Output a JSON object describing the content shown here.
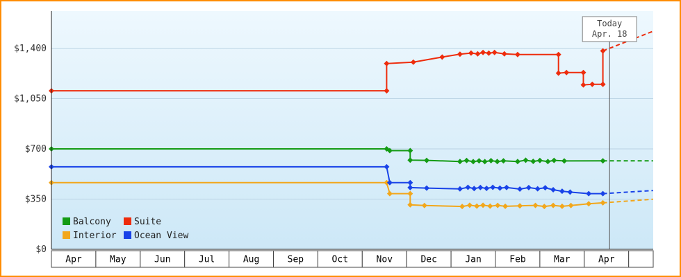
{
  "frame": {
    "border_color": "#ff8c00"
  },
  "chart_data": {
    "type": "line",
    "ylim": [
      0,
      1400
    ],
    "y_ticks": [
      {
        "value": 0,
        "label": "$0"
      },
      {
        "value": 350,
        "label": "$350"
      },
      {
        "value": 700,
        "label": "$700"
      },
      {
        "value": 1050,
        "label": "$1,050"
      },
      {
        "value": 1400,
        "label": "$1,400"
      }
    ],
    "x_months": [
      "Apr",
      "May",
      "Jun",
      "Jul",
      "Aug",
      "Sep",
      "Oct",
      "Nov",
      "Dec",
      "Jan",
      "Feb",
      "Mar",
      "Apr"
    ],
    "today": {
      "line1": "Today",
      "line2": "Apr. 18",
      "month": 12.57
    },
    "legend_order": [
      "Balcony",
      "Suite",
      "Interior",
      "Ocean View"
    ],
    "colors": {
      "bg_top": "#eef8fe",
      "bg_bottom": "#cde8f7",
      "grid": "#b9d2e4",
      "axis": "#222222",
      "today_line": "#555555"
    },
    "series": [
      {
        "name": "Interior",
        "color": "#f2a71b",
        "points": [
          [
            0,
            465
          ],
          [
            7.55,
            465
          ],
          [
            7.62,
            388
          ],
          [
            8.08,
            388
          ],
          [
            8.08,
            310
          ],
          [
            8.4,
            305
          ],
          [
            9.25,
            299
          ],
          [
            9.42,
            307
          ],
          [
            9.58,
            301
          ],
          [
            9.72,
            307
          ],
          [
            9.88,
            301
          ],
          [
            10.05,
            306
          ],
          [
            10.22,
            300
          ],
          [
            10.55,
            303
          ],
          [
            10.9,
            306
          ],
          [
            11.1,
            299
          ],
          [
            11.3,
            306
          ],
          [
            11.5,
            300
          ],
          [
            11.7,
            305
          ],
          [
            12.1,
            317
          ],
          [
            12.42,
            324
          ]
        ],
        "future": [
          [
            12.42,
            324
          ],
          [
            13.55,
            349
          ]
        ]
      },
      {
        "name": "Ocean View",
        "color": "#1943e8",
        "points": [
          [
            0,
            575
          ],
          [
            7.55,
            575
          ],
          [
            7.62,
            465
          ],
          [
            8.08,
            465
          ],
          [
            8.08,
            430
          ],
          [
            8.45,
            427
          ],
          [
            9.2,
            421
          ],
          [
            9.38,
            432
          ],
          [
            9.52,
            424
          ],
          [
            9.66,
            431
          ],
          [
            9.8,
            425
          ],
          [
            9.94,
            432
          ],
          [
            10.1,
            427
          ],
          [
            10.25,
            431
          ],
          [
            10.55,
            420
          ],
          [
            10.75,
            430
          ],
          [
            10.95,
            422
          ],
          [
            11.12,
            429
          ],
          [
            11.3,
            415
          ],
          [
            11.5,
            405
          ],
          [
            11.68,
            399
          ],
          [
            12.1,
            388
          ],
          [
            12.42,
            388
          ]
        ],
        "future": [
          [
            12.42,
            388
          ],
          [
            13.55,
            410
          ]
        ]
      },
      {
        "name": "Balcony",
        "color": "#149b14",
        "points": [
          [
            0,
            700
          ],
          [
            7.55,
            700
          ],
          [
            7.62,
            688
          ],
          [
            8.08,
            688
          ],
          [
            8.08,
            622
          ],
          [
            8.45,
            620
          ],
          [
            9.2,
            612
          ],
          [
            9.35,
            619
          ],
          [
            9.5,
            611
          ],
          [
            9.63,
            617
          ],
          [
            9.76,
            611
          ],
          [
            9.9,
            618
          ],
          [
            10.04,
            612
          ],
          [
            10.18,
            617
          ],
          [
            10.5,
            612
          ],
          [
            10.68,
            621
          ],
          [
            10.85,
            613
          ],
          [
            11.0,
            619
          ],
          [
            11.18,
            612
          ],
          [
            11.32,
            620
          ],
          [
            11.55,
            616
          ],
          [
            12.42,
            617
          ]
        ],
        "future": [
          [
            12.42,
            617
          ],
          [
            13.55,
            617
          ]
        ]
      },
      {
        "name": "Suite",
        "color": "#ee2c0c",
        "points": [
          [
            0,
            1105
          ],
          [
            7.55,
            1105
          ],
          [
            7.55,
            1295
          ],
          [
            8.15,
            1305
          ],
          [
            8.8,
            1340
          ],
          [
            9.2,
            1360
          ],
          [
            9.45,
            1368
          ],
          [
            9.6,
            1363
          ],
          [
            9.72,
            1372
          ],
          [
            9.85,
            1367
          ],
          [
            9.98,
            1372
          ],
          [
            10.2,
            1363
          ],
          [
            10.5,
            1358
          ],
          [
            11.42,
            1358
          ],
          [
            11.42,
            1228
          ],
          [
            11.6,
            1232
          ],
          [
            11.98,
            1232
          ],
          [
            11.98,
            1146
          ],
          [
            12.18,
            1150
          ],
          [
            12.42,
            1150
          ],
          [
            12.42,
            1383
          ]
        ],
        "future": [
          [
            12.42,
            1383
          ],
          [
            13.55,
            1520
          ]
        ]
      }
    ]
  }
}
